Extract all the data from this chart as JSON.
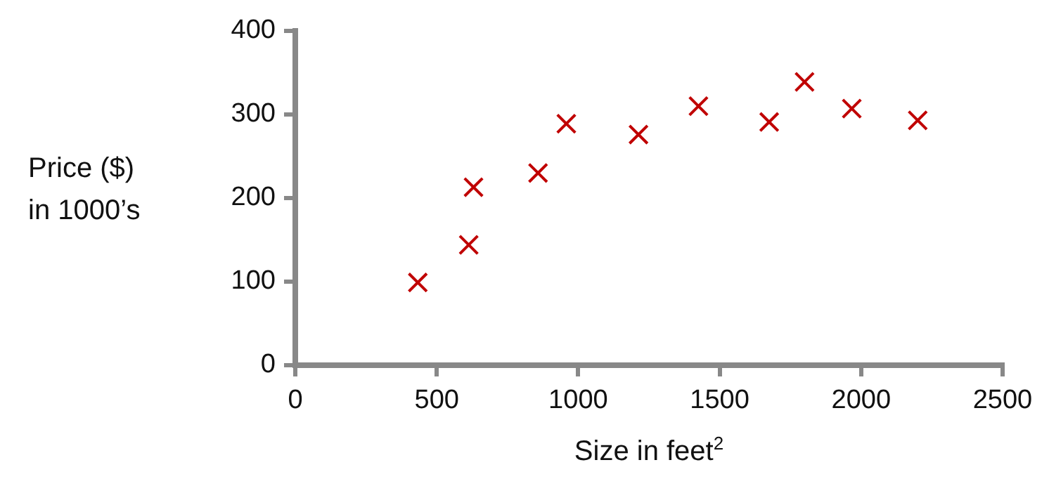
{
  "chart_data": {
    "type": "scatter",
    "xlabel": "Size in feet$^{2}$",
    "ylabel": "Price ($)\nin 1000’s",
    "x": [
      433,
      613,
      630,
      858,
      958,
      1213,
      1425,
      1675,
      1800,
      1967,
      2200
    ],
    "series": [
      {
        "color": "#c00000",
        "values": [
          99,
          144,
          213,
          230,
          289,
          276,
          310,
          291,
          339,
          307,
          293
        ]
      }
    ],
    "xlim": [
      0,
      2500
    ],
    "xticks": [
      0,
      500,
      1000,
      1500,
      2000,
      2500
    ],
    "ylim": [
      0,
      400
    ],
    "yticks": [
      0,
      100,
      200,
      300,
      400
    ],
    "grid": false,
    "legend": false,
    "marker": "cross"
  }
}
